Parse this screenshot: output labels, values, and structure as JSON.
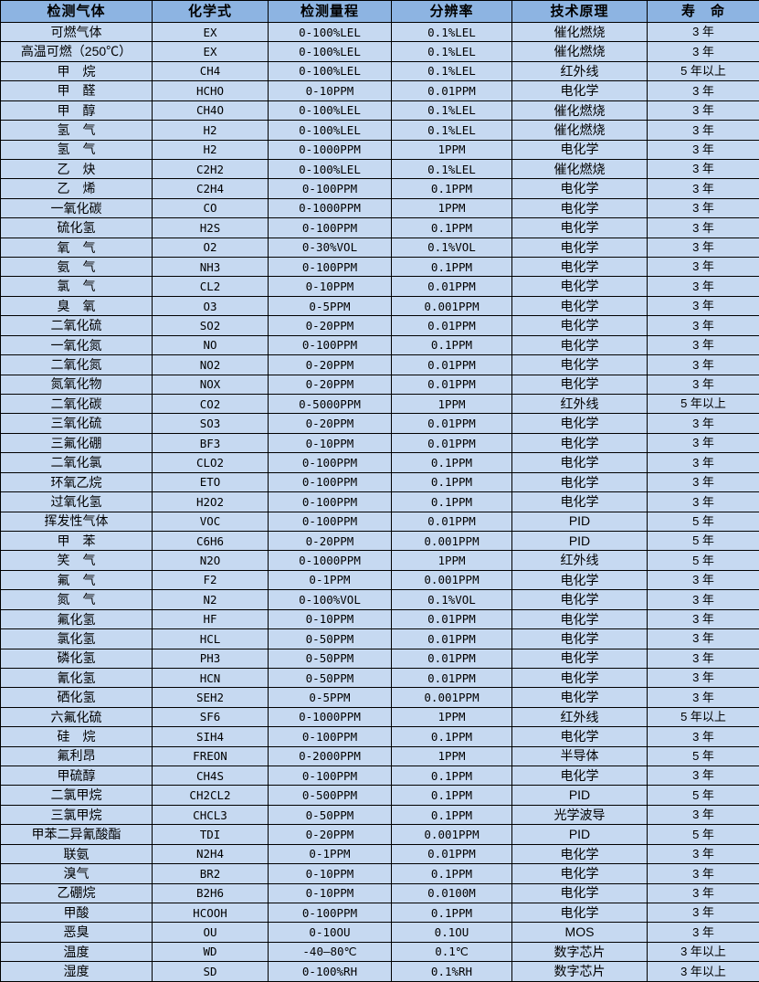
{
  "colors": {
    "header_bg": "#8db4e2",
    "row_bg": "#c6d9f1",
    "border_color": "#000000",
    "text_color": "#000000"
  },
  "table": {
    "headers": [
      "检测气体",
      "化学式",
      "检测量程",
      "分辨率",
      "技术原理",
      "寿　命"
    ],
    "rows": [
      [
        "可燃气体",
        "EX",
        "0-100%LEL",
        "0.1%LEL",
        "催化燃烧",
        "3 年"
      ],
      [
        "高温可燃（250℃）",
        "EX",
        "0-100%LEL",
        "0.1%LEL",
        "催化燃烧",
        "3 年"
      ],
      [
        "甲　烷",
        "CH4",
        "0-100%LEL",
        "0.1%LEL",
        "红外线",
        "5 年以上"
      ],
      [
        "甲　醛",
        "HCHO",
        "0-10PPM",
        "0.01PPM",
        "电化学",
        "3 年"
      ],
      [
        "甲　醇",
        "CH4O",
        "0-100%LEL",
        "0.1%LEL",
        "催化燃烧",
        "3 年"
      ],
      [
        "氢　气",
        "H2",
        "0-100%LEL",
        "0.1%LEL",
        "催化燃烧",
        "3 年"
      ],
      [
        "氢　气",
        "H2",
        "0-1000PPM",
        "1PPM",
        "电化学",
        "3 年"
      ],
      [
        "乙　炔",
        "C2H2",
        "0-100%LEL",
        "0.1%LEL",
        "催化燃烧",
        "3 年"
      ],
      [
        "乙　烯",
        "C2H4",
        "0-100PPM",
        "0.1PPM",
        "电化学",
        "3 年"
      ],
      [
        "一氧化碳",
        "CO",
        "0-1000PPM",
        "1PPM",
        "电化学",
        "3 年"
      ],
      [
        "硫化氢",
        "H2S",
        "0-100PPM",
        "0.1PPM",
        "电化学",
        "3 年"
      ],
      [
        "氧　气",
        "O2",
        "0-30%VOL",
        "0.1%VOL",
        "电化学",
        "3 年"
      ],
      [
        "氨　气",
        "NH3",
        "0-100PPM",
        "0.1PPM",
        "电化学",
        "3 年"
      ],
      [
        "氯　气",
        "CL2",
        "0-10PPM",
        "0.01PPM",
        "电化学",
        "3 年"
      ],
      [
        "臭　氧",
        "O3",
        "0-5PPM",
        "0.001PPM",
        "电化学",
        "3 年"
      ],
      [
        "二氧化硫",
        "SO2",
        "0-20PPM",
        "0.01PPM",
        "电化学",
        "3 年"
      ],
      [
        "一氧化氮",
        "NO",
        "0-100PPM",
        "0.1PPM",
        "电化学",
        "3 年"
      ],
      [
        "二氧化氮",
        "NO2",
        "0-20PPM",
        "0.01PPM",
        "电化学",
        "3 年"
      ],
      [
        "氮氧化物",
        "NOX",
        "0-20PPM",
        "0.01PPM",
        "电化学",
        "3 年"
      ],
      [
        "二氧化碳",
        "CO2",
        "0-5000PPM",
        "1PPM",
        "红外线",
        "5 年以上"
      ],
      [
        "三氧化硫",
        "SO3",
        "0-20PPM",
        "0.01PPM",
        "电化学",
        "3 年"
      ],
      [
        "三氟化硼",
        "BF3",
        "0-10PPM",
        "0.01PPM",
        "电化学",
        "3 年"
      ],
      [
        "二氧化氯",
        "CLO2",
        "0-100PPM",
        "0.1PPM",
        "电化学",
        "3 年"
      ],
      [
        "环氧乙烷",
        "ETO",
        "0-100PPM",
        "0.1PPM",
        "电化学",
        "3 年"
      ],
      [
        "过氧化氢",
        "H2O2",
        "0-100PPM",
        "0.1PPM",
        "电化学",
        "3 年"
      ],
      [
        "挥发性气体",
        "VOC",
        "0-100PPM",
        "0.01PPM",
        "PID",
        "5 年"
      ],
      [
        "甲　苯",
        "C6H6",
        "0-20PPM",
        "0.001PPM",
        "PID",
        "5 年"
      ],
      [
        "笑　气",
        "N2O",
        "0-1000PPM",
        "1PPM",
        "红外线",
        "5 年"
      ],
      [
        "氟　气",
        "F2",
        "0-1PPM",
        "0.001PPM",
        "电化学",
        "3 年"
      ],
      [
        "氮　气",
        "N2",
        "0-100%VOL",
        "0.1%VOL",
        "电化学",
        "3 年"
      ],
      [
        "氟化氢",
        "HF",
        "0-10PPM",
        "0.01PPM",
        "电化学",
        "3 年"
      ],
      [
        "氯化氢",
        "HCL",
        "0-50PPM",
        "0.01PPM",
        "电化学",
        "3 年"
      ],
      [
        "磷化氢",
        "PH3",
        "0-50PPM",
        "0.01PPM",
        "电化学",
        "3 年"
      ],
      [
        "氰化氢",
        "HCN",
        "0-50PPM",
        "0.01PPM",
        "电化学",
        "3 年"
      ],
      [
        "硒化氢",
        "SEH2",
        "0-5PPM",
        "0.001PPM",
        "电化学",
        "3 年"
      ],
      [
        "六氟化硫",
        "SF6",
        "0-1000PPM",
        "1PPM",
        "红外线",
        "5 年以上"
      ],
      [
        "硅　烷",
        "SIH4",
        "0-100PPM",
        "0.1PPM",
        "电化学",
        "3 年"
      ],
      [
        "氟利昂",
        "FREON",
        "0-2000PPM",
        "1PPM",
        "半导体",
        "5 年"
      ],
      [
        "甲硫醇",
        "CH4S",
        "0-100PPM",
        "0.1PPM",
        "电化学",
        "3 年"
      ],
      [
        "二氯甲烷",
        "CH2CL2",
        "0-500PPM",
        "0.1PPM",
        "PID",
        "5 年"
      ],
      [
        "三氯甲烷",
        "CHCL3",
        "0-50PPM",
        "0.1PPM",
        "光学波导",
        "3 年"
      ],
      [
        "甲苯二异氰酸酯",
        "TDI",
        "0-20PPM",
        "0.001PPM",
        "PID",
        "5 年"
      ],
      [
        "联氨",
        "N2H4",
        "0-1PPM",
        "0.01PPM",
        "电化学",
        "3 年"
      ],
      [
        "溴气",
        "BR2",
        "0-10PPM",
        "0.1PPM",
        "电化学",
        "3 年"
      ],
      [
        "乙硼烷",
        "B2H6",
        "0-10PPM",
        "0.0100M",
        "电化学",
        "3 年"
      ],
      [
        "甲酸",
        "HCOOH",
        "0-100PPM",
        "0.1PPM",
        "电化学",
        "3 年"
      ],
      [
        "恶臭",
        "OU",
        "0-10OU",
        "0.1OU",
        "MOS",
        "3 年"
      ],
      [
        "温度",
        "WD",
        "-40—80℃",
        "0.1℃",
        "数字芯片",
        "3 年以上"
      ],
      [
        "湿度",
        "SD",
        "0-100%RH",
        "0.1%RH",
        "数字芯片",
        "3 年以上"
      ]
    ]
  }
}
